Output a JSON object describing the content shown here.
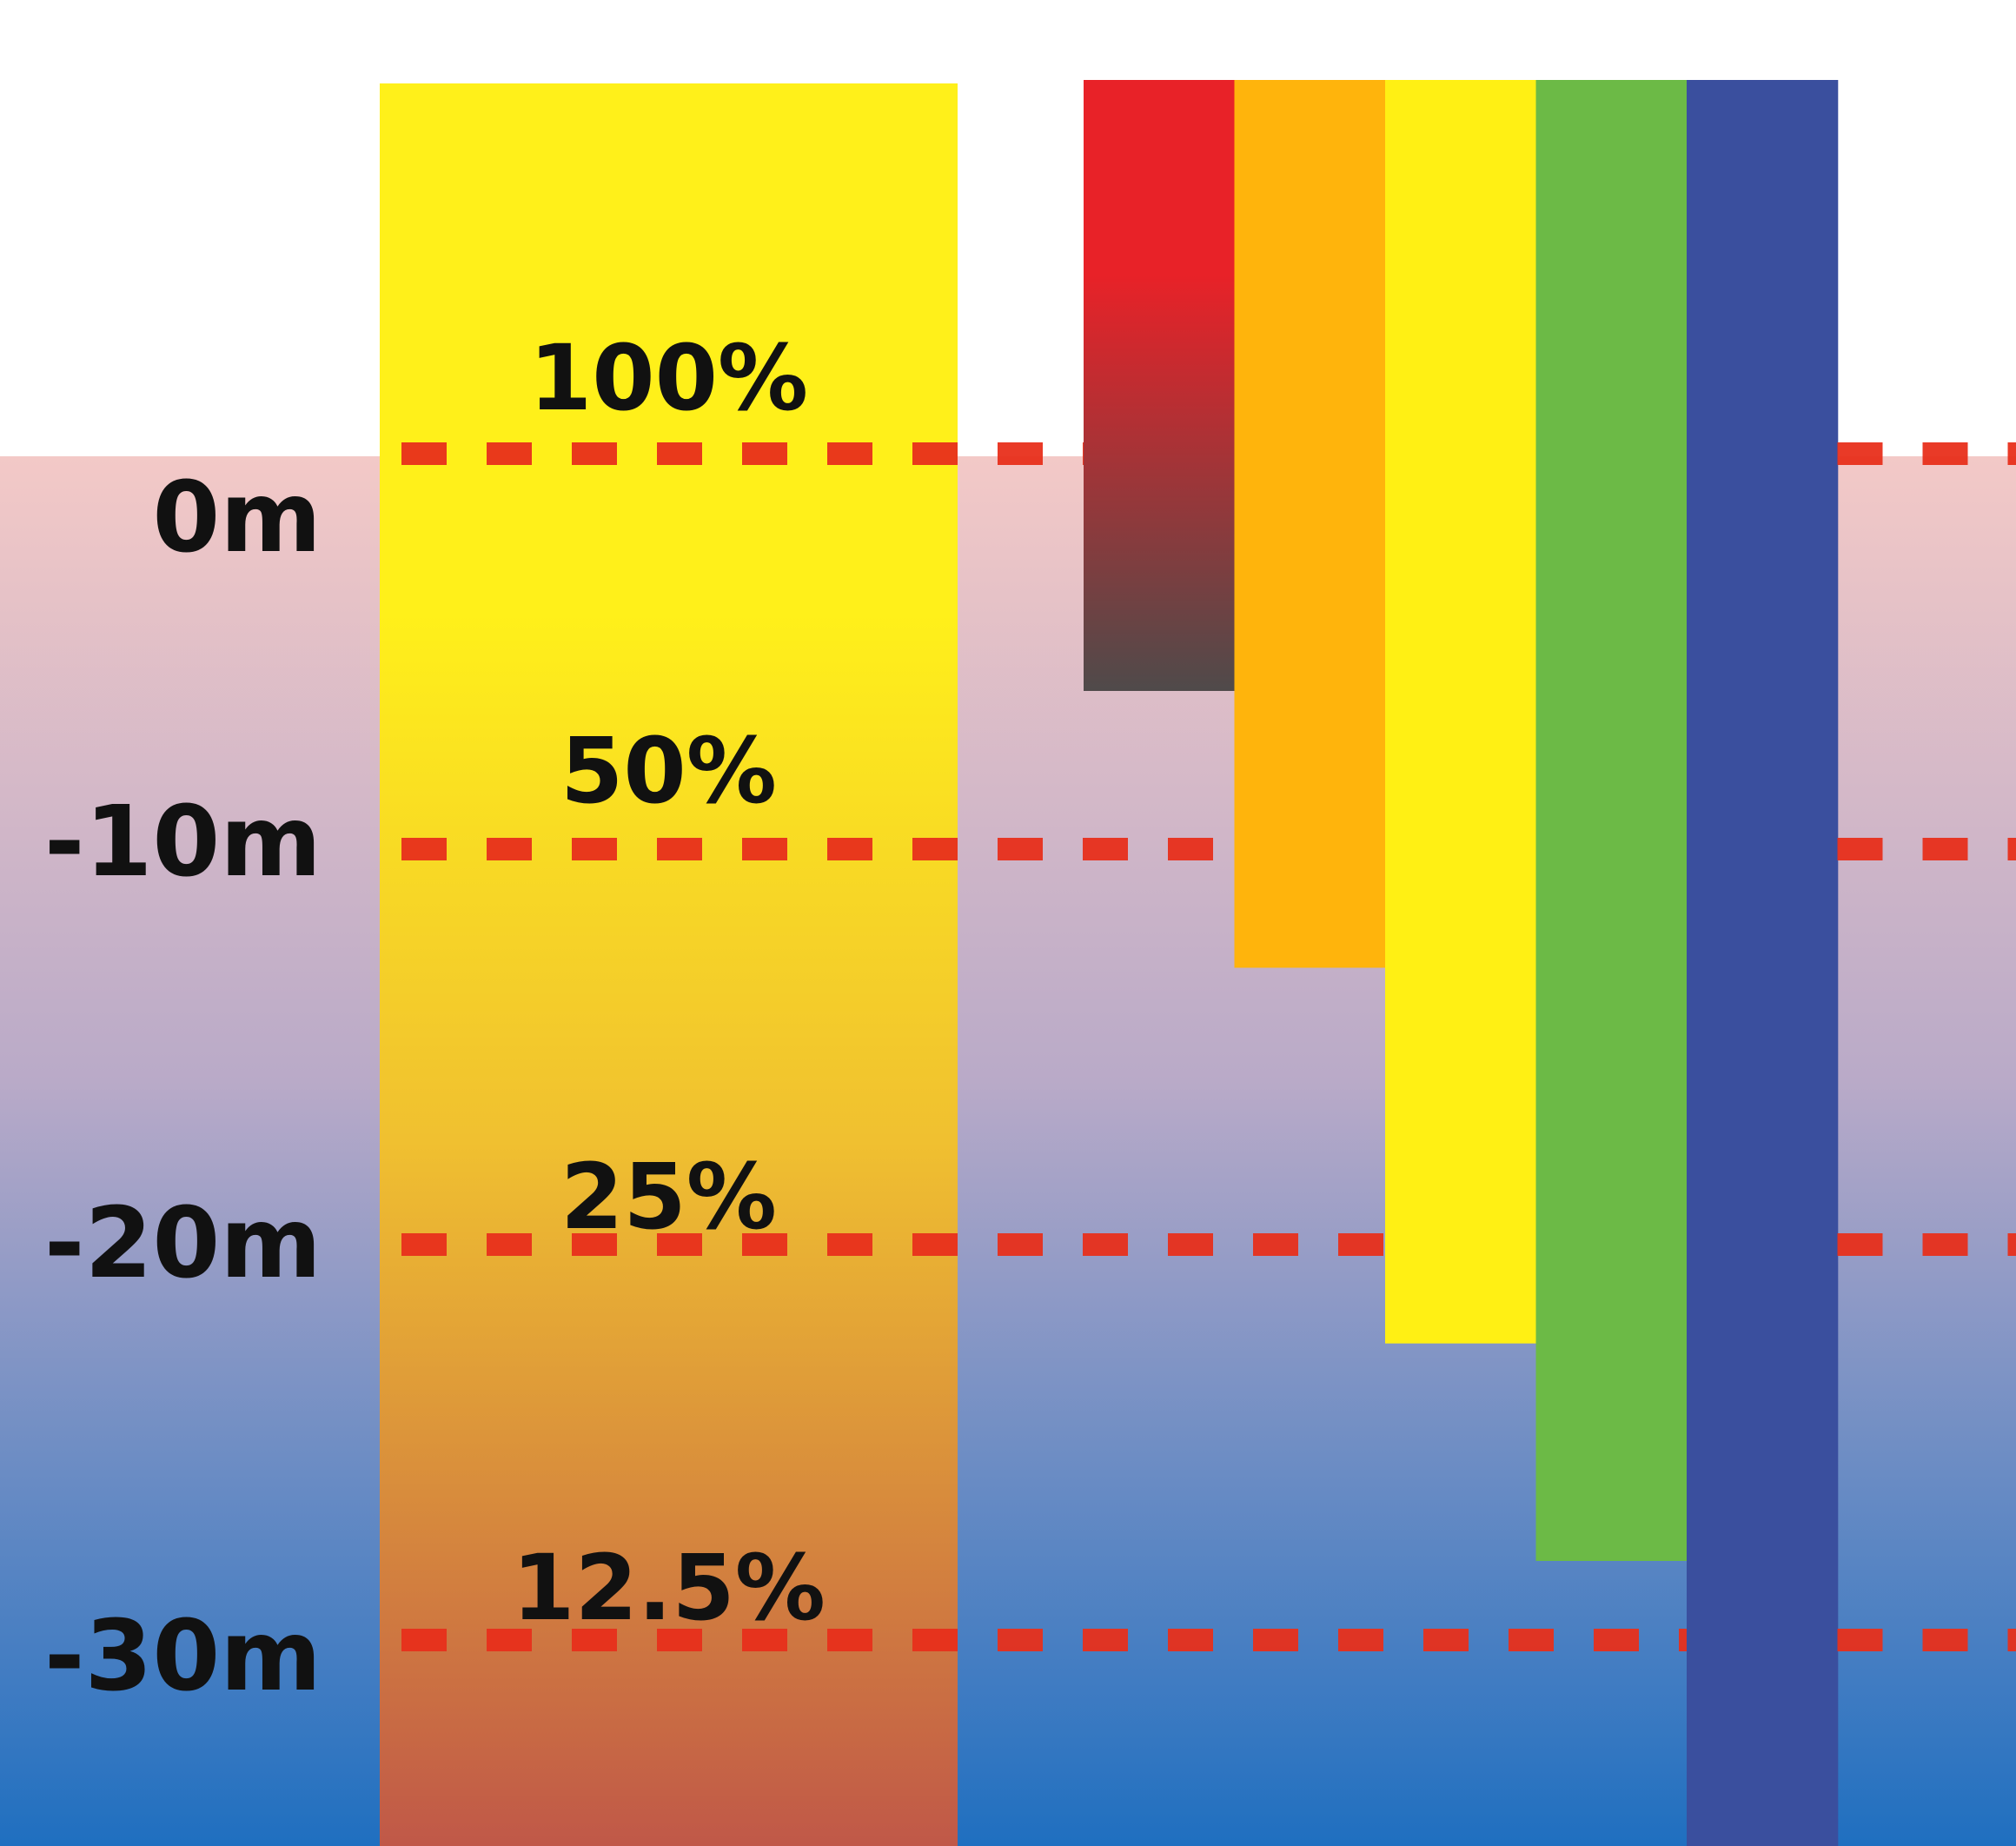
{
  "depth_labels": [
    {
      "text": "0m",
      "depth_m": 0
    },
    {
      "text": "-10m",
      "depth_m": 10
    },
    {
      "text": "-20m",
      "depth_m": 20
    },
    {
      "text": "-30m",
      "depth_m": 30
    }
  ],
  "light_labels": [
    {
      "text": "100%",
      "depth_m": 0
    },
    {
      "text": "50%",
      "depth_m": 10
    },
    {
      "text": "25%",
      "depth_m": 20
    },
    {
      "text": "12.5%",
      "depth_m": 30
    }
  ],
  "water_colors": {
    "surface": "#f3c9c7",
    "mid": "#b9aac8",
    "deep": "#1f6fc0"
  },
  "white_light_colors": {
    "top": "#fff01a",
    "mid": "#f0c030",
    "bottom": "#c05848"
  },
  "dash_color": "#e8301c",
  "spectrum_bars": [
    {
      "color_name": "red",
      "color": "#e82228",
      "fade_color": "#4f4a4a",
      "penetration_m": 6
    },
    {
      "color_name": "orange",
      "color": "#ffb40c",
      "penetration_m": 13
    },
    {
      "color_name": "yellow",
      "color": "#fff014",
      "penetration_m": 22.5
    },
    {
      "color_name": "green",
      "color": "#6cba46",
      "penetration_m": 28
    },
    {
      "color_name": "blue",
      "color": "#3a4f9e",
      "penetration_m": 40
    }
  ]
}
